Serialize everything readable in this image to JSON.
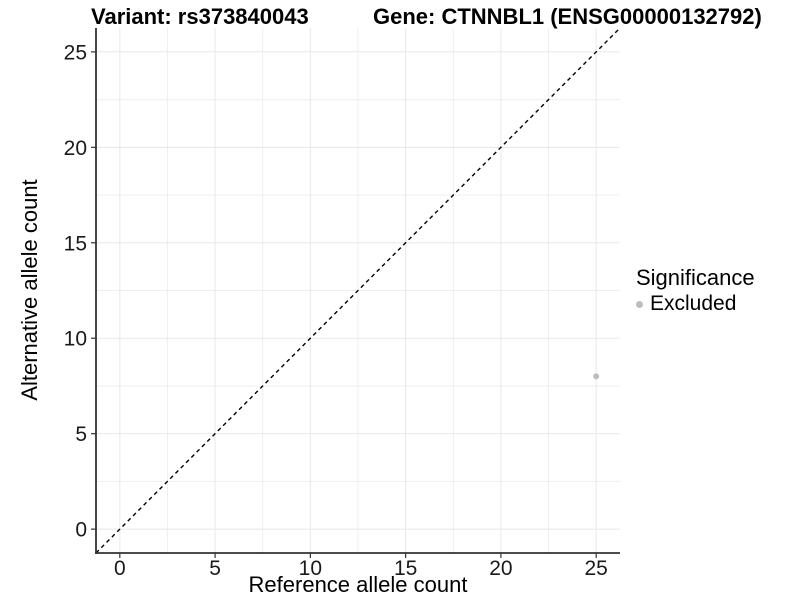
{
  "titles": {
    "left": "Variant: rs373840043",
    "right": "Gene: CTNNBL1 (ENSG00000132792)"
  },
  "axes": {
    "x": {
      "label": "Reference allele count"
    },
    "y": {
      "label": "Alternative allele count"
    }
  },
  "legend": {
    "title": "Significance",
    "entries": [
      {
        "label": "Excluded",
        "color": "#bdbdbd"
      }
    ]
  },
  "chart_data": {
    "type": "scatter",
    "title_left": "Variant: rs373840043",
    "title_right": "Gene: CTNNBL1 (ENSG00000132792)",
    "xlabel": "Reference allele count",
    "ylabel": "Alternative allele count",
    "xlim": [
      -1.25,
      26.25
    ],
    "ylim": [
      -1.25,
      26.25
    ],
    "x_ticks": [
      0,
      5,
      10,
      15,
      20,
      25
    ],
    "y_ticks": [
      0,
      5,
      10,
      15,
      20,
      25
    ],
    "grid": true,
    "series": [
      {
        "name": "Excluded",
        "color": "#bdbdbd",
        "points": [
          {
            "x": 25,
            "y": 8
          }
        ]
      }
    ],
    "reference_line": {
      "equation": "y = x",
      "style": "dashed",
      "color": "#000000",
      "from": [
        -1.25,
        -1.25
      ],
      "to": [
        26.25,
        26.25
      ]
    },
    "legend": {
      "title": "Significance",
      "position": "right",
      "entries": [
        "Excluded"
      ]
    },
    "colors": {
      "grid_major": "#e8e8e8",
      "grid_minor": "#efefef",
      "axis": "#333333",
      "point": "#bdbdbd",
      "text": "#000000"
    }
  }
}
